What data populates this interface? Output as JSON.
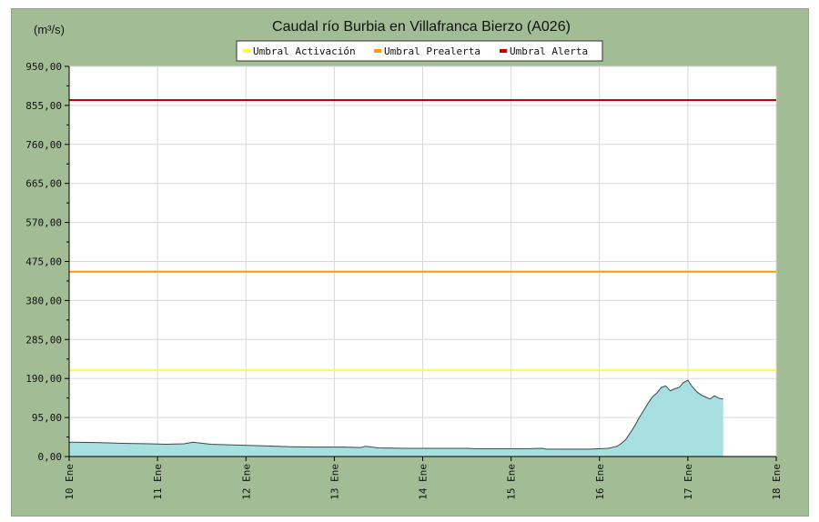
{
  "chart_data": {
    "type": "area",
    "title": "Caudal río Burbia en Villafranca Bierzo  (A026)",
    "ylabel": "(m³/s)",
    "ylim": [
      0,
      950
    ],
    "y_ticks": [
      "950,00",
      "855,00",
      "760,00",
      "665,00",
      "570,00",
      "475,00",
      "380,00",
      "285,00",
      "190,00",
      "95,00",
      "0,00"
    ],
    "y_tick_values": [
      950,
      855,
      760,
      665,
      570,
      475,
      380,
      285,
      190,
      95,
      0
    ],
    "xlim": [
      10,
      18
    ],
    "x_ticks": [
      "10 Ene",
      "11 Ene",
      "12 Ene",
      "13 Ene",
      "14 Ene",
      "15 Ene",
      "16 Ene",
      "17 Ene",
      "18 Ene"
    ],
    "x_tick_values": [
      10,
      11,
      12,
      13,
      14,
      15,
      16,
      17,
      18
    ],
    "grid": true,
    "legend_position": "top-center",
    "thresholds": [
      {
        "name": "Umbral Activación",
        "value": 210,
        "color": "#ffff33"
      },
      {
        "name": "Umbral Prealerta",
        "value": 450,
        "color": "#ff9900"
      },
      {
        "name": "Umbral Alerta",
        "value": 868,
        "color": "#cc0000"
      }
    ],
    "series": [
      {
        "fill": "#a8dfe0",
        "stroke": "#3a4a4a",
        "x": [
          10.0,
          10.3,
          10.6,
          10.9,
          11.1,
          11.3,
          11.4,
          11.6,
          11.9,
          12.2,
          12.5,
          12.8,
          13.1,
          13.3,
          13.35,
          13.5,
          13.8,
          14.2,
          14.5,
          14.6,
          14.9,
          15.2,
          15.35,
          15.4,
          15.6,
          15.9,
          16.1,
          16.2,
          16.25,
          16.3,
          16.35,
          16.4,
          16.45,
          16.5,
          16.55,
          16.6,
          16.65,
          16.7,
          16.75,
          16.8,
          16.85,
          16.9,
          16.95,
          17.0,
          17.05,
          17.1,
          17.15,
          17.2,
          17.25,
          17.3,
          17.35,
          17.4
        ],
        "y": [
          35,
          34,
          32,
          31,
          30,
          31,
          35,
          30,
          28,
          26,
          24,
          23,
          23,
          22,
          25,
          21,
          20,
          20,
          20,
          19,
          19,
          19,
          20,
          18,
          18,
          18,
          20,
          25,
          32,
          42,
          58,
          75,
          95,
          112,
          130,
          145,
          155,
          168,
          172,
          160,
          165,
          168,
          180,
          186,
          170,
          158,
          150,
          145,
          140,
          148,
          142,
          140
        ]
      }
    ],
    "legend_entries": [
      "Umbral Activación",
      "Umbral Prealerta",
      "Umbral Alerta"
    ]
  }
}
